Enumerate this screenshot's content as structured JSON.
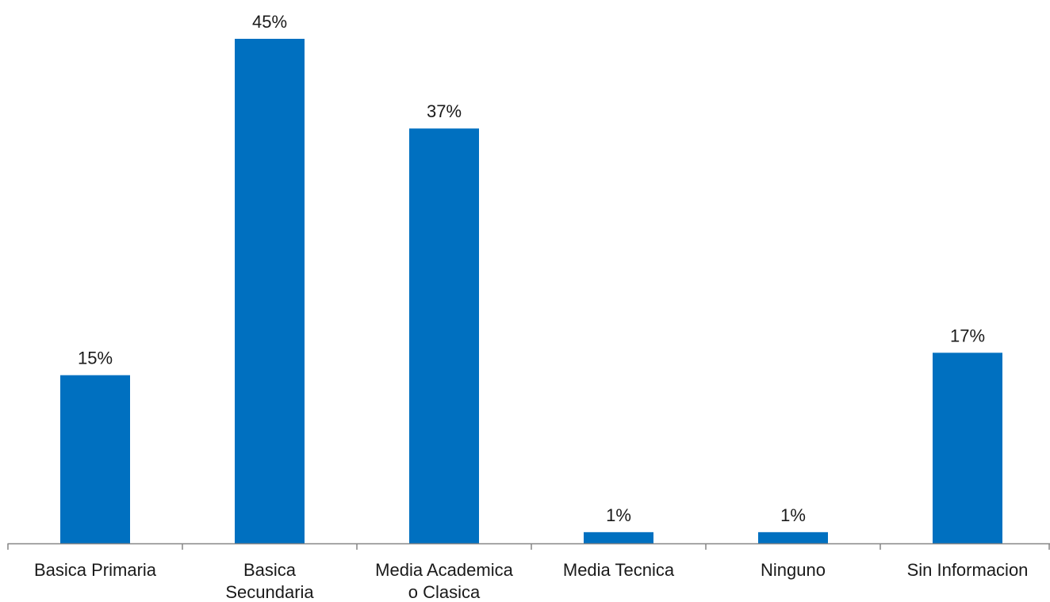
{
  "chart_data": {
    "type": "bar",
    "categories": [
      [
        "Basica Primaria"
      ],
      [
        "Basica",
        "Secundaria"
      ],
      [
        "Media Academica",
        "o Clasica"
      ],
      [
        "Media Tecnica"
      ],
      [
        "Ninguno"
      ],
      [
        "Sin Informacion"
      ]
    ],
    "values": [
      15,
      45,
      37,
      1,
      1,
      17
    ],
    "data_labels": [
      "15%",
      "45%",
      "37%",
      "1%",
      "1%",
      "17%"
    ],
    "value_unit": "%",
    "ylim": [
      0,
      45
    ],
    "grid": false,
    "legend": "none",
    "bar_color": "#0070C0",
    "axis_color": "#868686"
  }
}
